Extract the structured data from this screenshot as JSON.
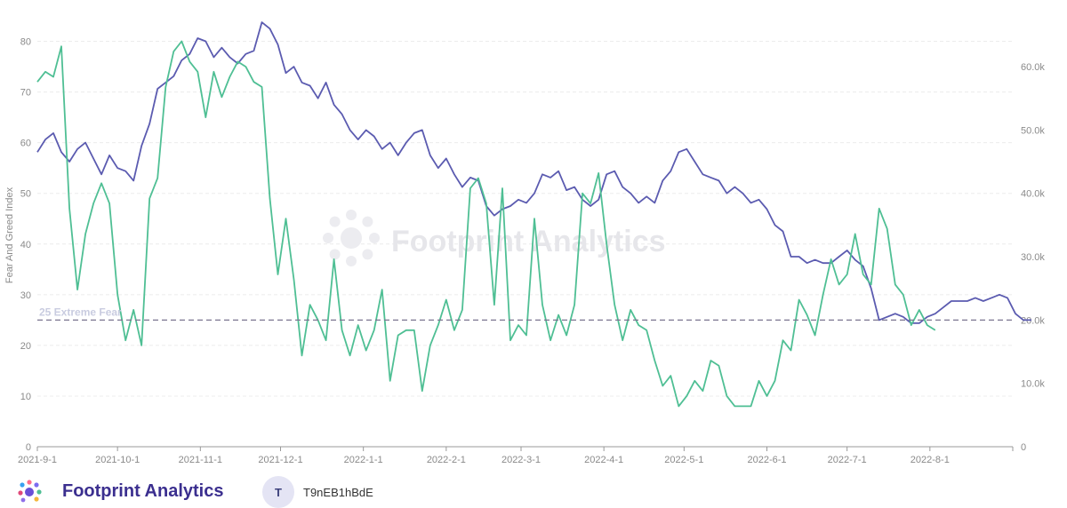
{
  "chart_data": {
    "type": "line",
    "ylabel": "Fear And Greed Index",
    "y_left_ticks": [
      "0",
      "10",
      "20",
      "30",
      "40",
      "50",
      "60",
      "70",
      "80"
    ],
    "y_right_ticks": [
      "0",
      "10.0k",
      "20.0k",
      "30.0k",
      "40.0k",
      "50.0k",
      "60.0k"
    ],
    "x_ticks": [
      "2021-9-1",
      "2021-10-1",
      "2021-11-1",
      "2021-12-1",
      "2022-1-1",
      "2022-2-1",
      "2022-3-1",
      "2022-4-1",
      "2022-5-1",
      "2022-6-1",
      "2022-7-1",
      "2022-8-1"
    ],
    "reference_line": {
      "value": 25,
      "label": "25 Extreme Fear"
    },
    "ylim_left": [
      0,
      85
    ],
    "ylim_right": [
      0,
      68000
    ],
    "grid": "horizontal dashed",
    "series": [
      {
        "axis": "right",
        "color": "#5b5bb0",
        "x_start": "2021-09-01",
        "step_days": 3,
        "values": [
          46500,
          48500,
          49500,
          46500,
          45000,
          47000,
          48000,
          45500,
          43000,
          46000,
          44000,
          43500,
          42000,
          47500,
          51000,
          56500,
          57500,
          58500,
          61000,
          62000,
          64500,
          64000,
          61500,
          63000,
          61500,
          60500,
          62000,
          62500,
          67000,
          66000,
          63500,
          59000,
          60000,
          57500,
          57000,
          55000,
          57500,
          54000,
          52500,
          50000,
          48500,
          50000,
          49000,
          47000,
          48000,
          46000,
          48000,
          49500,
          50000,
          46000,
          44000,
          45500,
          43000,
          41000,
          42500,
          42000,
          38000,
          36500,
          37500,
          38000,
          39000,
          38500,
          40000,
          43000,
          42500,
          43500,
          40500,
          41000,
          39000,
          38000,
          39000,
          43000,
          43500,
          41000,
          40000,
          38500,
          39500,
          38500,
          42000,
          43500,
          46500,
          47000,
          45000,
          43000,
          42500,
          42000,
          40000,
          41000,
          40000,
          38500,
          39000,
          37500,
          35000,
          34000,
          30000,
          30000,
          29000,
          29500,
          29000,
          29000,
          30000,
          31000,
          29500,
          28500,
          25000,
          20000,
          20500,
          21000,
          20500,
          19500,
          19500,
          20500,
          21000,
          22000,
          23000,
          23000,
          23000,
          23500,
          23000,
          23500,
          24000,
          23500,
          21000,
          20000,
          20000
        ]
      },
      {
        "axis": "left",
        "color": "#4fbf94",
        "x_start": "2021-09-01",
        "step_days": 3,
        "values": [
          72,
          74,
          73,
          79,
          47,
          31,
          42,
          48,
          52,
          48,
          30,
          21,
          27,
          20,
          49,
          53,
          71,
          78,
          80,
          76,
          74,
          65,
          74,
          69,
          73,
          76,
          75,
          72,
          71,
          49,
          34,
          45,
          33,
          18,
          28,
          25,
          21,
          37,
          23,
          18,
          24,
          19,
          23,
          31,
          13,
          22,
          23,
          23,
          11,
          20,
          24,
          29,
          23,
          27,
          51,
          53,
          48,
          28,
          51,
          21,
          24,
          22,
          45,
          28,
          21,
          26,
          22,
          28,
          50,
          48,
          54,
          40,
          28,
          21,
          27,
          24,
          23,
          17,
          12,
          14,
          8,
          10,
          13,
          11,
          17,
          16,
          10,
          8,
          8,
          8,
          13,
          10,
          13,
          21,
          19,
          29,
          26,
          22,
          30,
          37,
          32,
          34,
          42,
          34,
          32,
          47,
          43,
          32,
          30,
          24,
          27,
          24,
          23
        ]
      }
    ]
  },
  "watermark": {
    "text": "Footprint Analytics"
  },
  "footer": {
    "brand_name": "Footprint Analytics",
    "avatar_initial": "T",
    "username": "T9nEB1hBdE"
  },
  "colors": {
    "accent": "#3b2f8f",
    "btc": "#5b5bb0",
    "fng": "#4fbf94",
    "grid": "#ececec",
    "axis": "#999999"
  }
}
